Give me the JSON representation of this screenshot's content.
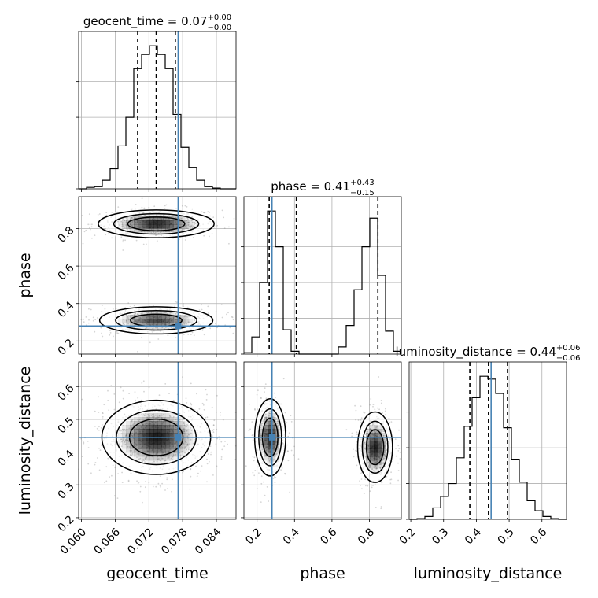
{
  "chart_data": {
    "type": "corner",
    "parameters": [
      "geocent_time",
      "phase",
      "luminosity_distance"
    ],
    "axis_labels": [
      "geocent_time",
      "phase",
      "luminosity_distance"
    ],
    "titles": {
      "geocent_time": {
        "name": "geocent_time",
        "median": "0.07",
        "plus": "+0.00",
        "minus": "−0.00"
      },
      "phase": {
        "name": "phase",
        "median": "0.41",
        "plus": "+0.43",
        "minus": "−0.15"
      },
      "luminosity_distance": {
        "name": "luminosity_distance",
        "median": "0.44",
        "plus": "+0.06",
        "minus": "−0.06"
      }
    },
    "ranges": {
      "geocent_time": [
        0.0595,
        0.0875
      ],
      "phase": [
        0.13,
        0.97
      ],
      "luminosity_distance": [
        0.195,
        0.675
      ]
    },
    "ticks": {
      "geocent_time": [
        0.06,
        0.066,
        0.072,
        0.078,
        0.084
      ],
      "geocent_time_labels": [
        "0.060",
        "0.066",
        "0.072",
        "0.078",
        "0.084"
      ],
      "phase_x": [
        0.2,
        0.4,
        0.6,
        0.8
      ],
      "phase_x_labels": [
        "0.2",
        "0.4",
        "0.6",
        "0.8"
      ],
      "phase_y": [
        0.2,
        0.4,
        0.6,
        0.8
      ],
      "phase_y_labels": [
        "0.2",
        "0.4",
        "0.6",
        "0.8"
      ],
      "luminosity_distance": [
        0.2,
        0.3,
        0.4,
        0.5,
        0.6
      ],
      "luminosity_distance_labels": [
        "0.2",
        "0.3",
        "0.4",
        "0.5",
        "0.6"
      ]
    },
    "truths": {
      "geocent_time": 0.0772,
      "phase": 0.28,
      "luminosity_distance": 0.445
    },
    "quantiles": {
      "geocent_time": [
        0.07,
        0.0733,
        0.0767
      ],
      "phase": [
        0.265,
        0.41,
        0.845
      ],
      "luminosity_distance": [
        0.38,
        0.437,
        0.495
      ]
    },
    "histograms": {
      "geocent_time": {
        "edges": [
          0.0595,
          0.0609,
          0.0623,
          0.0637,
          0.0651,
          0.0665,
          0.0679,
          0.0693,
          0.0707,
          0.0721,
          0.0735,
          0.0749,
          0.0763,
          0.0777,
          0.0791,
          0.0805,
          0.0819,
          0.0833,
          0.0847,
          0.0861,
          0.0875
        ],
        "counts": [
          0.0,
          1.0,
          1.5,
          6.0,
          14.0,
          30.0,
          50.0,
          84.0,
          94.0,
          100.0,
          94.0,
          84.0,
          52.0,
          29.0,
          15.0,
          6.0,
          1.5,
          0.5,
          0.0,
          0.0
        ]
      },
      "phase": {
        "edges": [
          0.13,
          0.172,
          0.214,
          0.256,
          0.298,
          0.34,
          0.382,
          0.424,
          0.466,
          0.508,
          0.55,
          0.592,
          0.634,
          0.676,
          0.718,
          0.76,
          0.802,
          0.844,
          0.886,
          0.928,
          0.97
        ],
        "counts": [
          1.0,
          12.0,
          50.0,
          100.0,
          75.0,
          17.0,
          2.0,
          0.0,
          0.0,
          0.0,
          0.0,
          0.0,
          5.0,
          20.0,
          45.0,
          75.0,
          95.0,
          55.0,
          16.0,
          2.0
        ]
      },
      "luminosity_distance": {
        "edges": [
          0.195,
          0.219,
          0.243,
          0.267,
          0.291,
          0.315,
          0.339,
          0.363,
          0.387,
          0.411,
          0.435,
          0.459,
          0.483,
          0.507,
          0.531,
          0.555,
          0.579,
          0.603,
          0.627,
          0.651,
          0.675
        ],
        "counts": [
          0.0,
          0.5,
          2.0,
          8.0,
          16.0,
          25.0,
          43.0,
          65.0,
          85.0,
          100.0,
          98.0,
          88.0,
          64.0,
          42.0,
          26.0,
          13.0,
          6.0,
          2.0,
          0.5,
          0.0
        ]
      }
    },
    "contour_modes": [
      {
        "x": "geocent_time",
        "y": "phase",
        "cx": 0.0733,
        "cy": 0.825,
        "sx": 0.005,
        "sy": 0.036,
        "weight": 0.55
      },
      {
        "x": "geocent_time",
        "y": "phase",
        "cx": 0.0733,
        "cy": 0.31,
        "sx": 0.005,
        "sy": 0.036,
        "weight": 0.5
      },
      {
        "x": "geocent_time",
        "y": "luminosity_distance",
        "cx": 0.0733,
        "cy": 0.445,
        "sx": 0.0047,
        "sy": 0.055,
        "weight": 1.0
      },
      {
        "x": "phase",
        "y": "luminosity_distance",
        "cx": 0.27,
        "cy": 0.445,
        "sx": 0.04,
        "sy": 0.057,
        "weight": 0.5
      },
      {
        "x": "phase",
        "y": "luminosity_distance",
        "cx": 0.83,
        "cy": 0.415,
        "sx": 0.045,
        "sy": 0.052,
        "weight": 0.5
      }
    ],
    "grid": true,
    "colors": {
      "truth": "#4682b4",
      "hist": "#000000",
      "quantile": "#000000",
      "grid": "#b0b0b0",
      "density": "#000000"
    }
  }
}
